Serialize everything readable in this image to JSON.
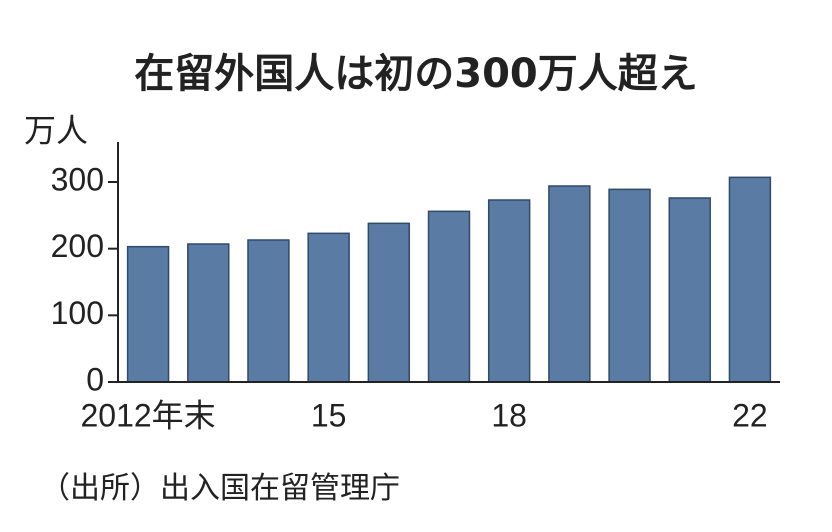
{
  "chart_data": {
    "type": "bar",
    "title": "在留外国人は初の300万人超え",
    "y_label": "万人",
    "source": "（出所）出入国在留管理庁",
    "categories": [
      "2012年末",
      null,
      null,
      "15",
      null,
      null,
      "18",
      null,
      null,
      null,
      "22"
    ],
    "values": [
      203,
      207,
      213,
      223,
      238,
      256,
      273,
      294,
      289,
      276,
      307
    ],
    "color": "#5a7ca4",
    "ylim": [
      0,
      360
    ],
    "yticks": [
      0,
      100,
      200,
      300
    ],
    "grid": false
  }
}
